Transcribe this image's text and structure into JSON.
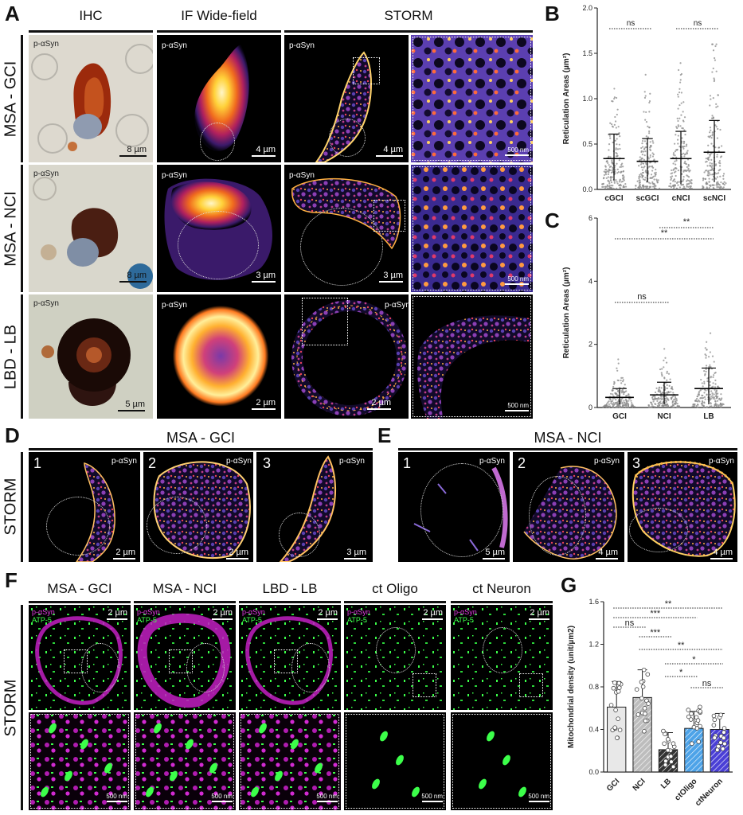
{
  "panels": {
    "A": "A",
    "B": "B",
    "C": "C",
    "D": "D",
    "E": "E",
    "F": "F",
    "G": "G"
  },
  "panelA": {
    "columns": [
      "IHC",
      "IF Wide-field",
      "STORM"
    ],
    "rows": [
      "MSA - GCI",
      "MSA - NCI",
      "LBD - LB"
    ],
    "marker": "p-αSyn",
    "scales": {
      "r1": [
        "8 µm",
        "4 µm",
        "4 µm",
        "500 nm"
      ],
      "r2": [
        "8 µm",
        "3 µm",
        "3 µm",
        "500 nm"
      ],
      "r3": [
        "5 µm",
        "2 µm",
        "2 µm",
        "500 nm"
      ]
    }
  },
  "panelD": {
    "title": "MSA - GCI",
    "side": "STORM",
    "nums": [
      "1",
      "2",
      "3"
    ],
    "marker": "p-αSyn",
    "scales": [
      "2 µm",
      "2 µm",
      "3 µm"
    ]
  },
  "panelE": {
    "title": "MSA - NCI",
    "nums": [
      "1",
      "2",
      "3"
    ],
    "marker": "p-αSyn",
    "scales": [
      "5 µm",
      "4 µm",
      "4 µm"
    ]
  },
  "panelF": {
    "side": "STORM",
    "columns": [
      "MSA - GCI",
      "MSA - NCI",
      "LBD - LB",
      "ct Oligo",
      "ct Neuron"
    ],
    "marker1": "p-αSyn",
    "marker2": "ATP-5",
    "scale_top": "2 µm",
    "scale_bottom": "500 nm"
  },
  "chart_data": [
    {
      "id": "B",
      "type": "scatter",
      "ylabel": "Reticulation Areas (µm²)",
      "categories": [
        "cGCI",
        "scGCI",
        "cNCI",
        "scNCI"
      ],
      "ylim": [
        0,
        2.0
      ],
      "yticks": [
        "0.0",
        "0.5",
        "1.0",
        "1.5",
        "2.0"
      ],
      "mean": [
        0.34,
        0.31,
        0.34,
        0.41
      ],
      "sd_upper": [
        0.61,
        0.56,
        0.64,
        0.76
      ],
      "sd_lower": [
        0.1,
        0.08,
        0.06,
        0.08
      ],
      "comparisons": [
        {
          "a": 0,
          "b": 1,
          "label": "ns"
        },
        {
          "a": 2,
          "b": 3,
          "label": "ns"
        }
      ]
    },
    {
      "id": "C",
      "type": "scatter",
      "ylabel": "Reticulation Areas (µm²)",
      "categories": [
        "GCI",
        "NCI",
        "LB"
      ],
      "ylim": [
        0,
        6
      ],
      "yticks": [
        "0",
        "2",
        "4",
        "6"
      ],
      "mean": [
        0.32,
        0.4,
        0.6
      ],
      "sd_upper": [
        0.6,
        0.8,
        1.25
      ],
      "sd_lower": [
        0.1,
        0.1,
        0.1
      ],
      "comparisons": [
        {
          "a": 0,
          "b": 1,
          "label": "ns"
        },
        {
          "a": 0,
          "b": 2,
          "label": "**"
        },
        {
          "a": 1,
          "b": 2,
          "label": "**"
        }
      ]
    },
    {
      "id": "G",
      "type": "bar",
      "ylabel": "Mitochondrial density (unit/µm2)",
      "categories": [
        "GCI",
        "NCI",
        "LB",
        "ctOligo",
        "ctNeuron"
      ],
      "ylim": [
        0,
        1.6
      ],
      "yticks": [
        "0.0",
        "0.4",
        "0.8",
        "1.2",
        "1.6"
      ],
      "values": [
        0.61,
        0.7,
        0.21,
        0.41,
        0.4
      ],
      "sd": [
        0.24,
        0.26,
        0.16,
        0.16,
        0.15
      ],
      "colors": [
        "#e8e8e8",
        "#bdbdbd",
        "#333333",
        "#4da3e8",
        "#4a3fd6"
      ],
      "comparisons": [
        {
          "a": 0,
          "b": 4,
          "label": "**"
        },
        {
          "a": 0,
          "b": 3,
          "label": "***"
        },
        {
          "a": 0,
          "b": 1,
          "label": "ns"
        },
        {
          "a": 1,
          "b": 2,
          "label": "***"
        },
        {
          "a": 1,
          "b": 4,
          "label": "**"
        },
        {
          "a": 2,
          "b": 4,
          "label": "*"
        },
        {
          "a": 2,
          "b": 3,
          "label": "*"
        },
        {
          "a": 3,
          "b": 4,
          "label": "ns"
        }
      ]
    }
  ]
}
